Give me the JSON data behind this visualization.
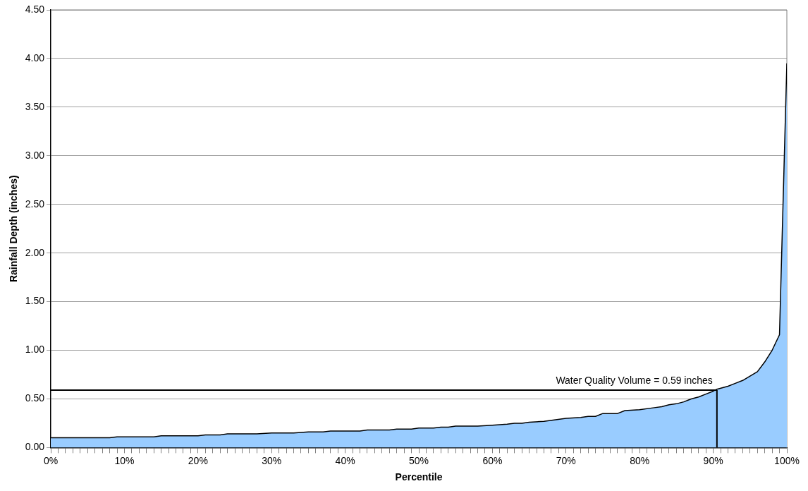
{
  "chart_data": {
    "type": "area",
    "xlabel": "Percentile",
    "ylabel": "Rainfall Depth (inches)",
    "x": [
      0,
      2,
      4,
      6,
      8,
      9,
      12,
      14,
      15,
      18,
      20,
      21,
      22,
      23,
      24,
      28,
      30,
      33,
      35,
      37,
      38,
      42,
      43,
      46,
      47,
      49,
      50,
      52,
      53,
      54,
      55,
      58,
      60,
      62,
      63,
      64,
      65,
      67,
      70,
      72,
      73,
      74,
      75,
      77,
      78,
      80,
      82,
      83,
      84,
      85,
      86,
      87,
      88,
      89,
      90,
      90.5,
      92,
      93,
      94,
      96,
      97,
      98,
      99,
      100
    ],
    "series": [
      {
        "color": "#99ccff",
        "values": [
          0.1,
          0.1,
          0.1,
          0.1,
          0.1,
          0.11,
          0.11,
          0.11,
          0.12,
          0.12,
          0.12,
          0.13,
          0.13,
          0.13,
          0.14,
          0.14,
          0.15,
          0.15,
          0.16,
          0.16,
          0.17,
          0.17,
          0.18,
          0.18,
          0.19,
          0.19,
          0.2,
          0.2,
          0.21,
          0.21,
          0.22,
          0.22,
          0.23,
          0.24,
          0.25,
          0.25,
          0.26,
          0.27,
          0.3,
          0.31,
          0.32,
          0.32,
          0.35,
          0.35,
          0.38,
          0.39,
          0.41,
          0.42,
          0.44,
          0.45,
          0.47,
          0.5,
          0.52,
          0.55,
          0.58,
          0.6,
          0.63,
          0.66,
          0.69,
          0.78,
          0.88,
          1.0,
          1.16,
          3.95
        ]
      }
    ],
    "xlim": [
      0,
      100
    ],
    "xticks": [
      {
        "value": 0,
        "label": "0%"
      },
      {
        "value": 1,
        "label": null
      },
      {
        "value": 2,
        "label": null
      },
      {
        "value": 3,
        "label": null
      },
      {
        "value": 4,
        "label": null
      },
      {
        "value": 5,
        "label": null
      },
      {
        "value": 6,
        "label": null
      },
      {
        "value": 7,
        "label": null
      },
      {
        "value": 8,
        "label": null
      },
      {
        "value": 9,
        "label": null
      },
      {
        "value": 10,
        "label": "10%"
      },
      {
        "value": 11,
        "label": null
      },
      {
        "value": 12,
        "label": null
      },
      {
        "value": 13,
        "label": null
      },
      {
        "value": 14,
        "label": null
      },
      {
        "value": 15,
        "label": null
      },
      {
        "value": 16,
        "label": null
      },
      {
        "value": 17,
        "label": null
      },
      {
        "value": 18,
        "label": null
      },
      {
        "value": 19,
        "label": null
      },
      {
        "value": 20,
        "label": "20%"
      },
      {
        "value": 21,
        "label": null
      },
      {
        "value": 22,
        "label": null
      },
      {
        "value": 23,
        "label": null
      },
      {
        "value": 24,
        "label": null
      },
      {
        "value": 25,
        "label": null
      },
      {
        "value": 26,
        "label": null
      },
      {
        "value": 27,
        "label": null
      },
      {
        "value": 28,
        "label": null
      },
      {
        "value": 29,
        "label": null
      },
      {
        "value": 30,
        "label": "30%"
      },
      {
        "value": 31,
        "label": null
      },
      {
        "value": 32,
        "label": null
      },
      {
        "value": 33,
        "label": null
      },
      {
        "value": 34,
        "label": null
      },
      {
        "value": 35,
        "label": null
      },
      {
        "value": 36,
        "label": null
      },
      {
        "value": 37,
        "label": null
      },
      {
        "value": 38,
        "label": null
      },
      {
        "value": 39,
        "label": null
      },
      {
        "value": 40,
        "label": "40%"
      },
      {
        "value": 41,
        "label": null
      },
      {
        "value": 42,
        "label": null
      },
      {
        "value": 43,
        "label": null
      },
      {
        "value": 44,
        "label": null
      },
      {
        "value": 45,
        "label": null
      },
      {
        "value": 46,
        "label": null
      },
      {
        "value": 47,
        "label": null
      },
      {
        "value": 48,
        "label": null
      },
      {
        "value": 49,
        "label": null
      },
      {
        "value": 50,
        "label": "50%"
      },
      {
        "value": 51,
        "label": null
      },
      {
        "value": 52,
        "label": null
      },
      {
        "value": 53,
        "label": null
      },
      {
        "value": 54,
        "label": null
      },
      {
        "value": 55,
        "label": null
      },
      {
        "value": 56,
        "label": null
      },
      {
        "value": 57,
        "label": null
      },
      {
        "value": 58,
        "label": null
      },
      {
        "value": 59,
        "label": null
      },
      {
        "value": 60,
        "label": "60%"
      },
      {
        "value": 61,
        "label": null
      },
      {
        "value": 62,
        "label": null
      },
      {
        "value": 63,
        "label": null
      },
      {
        "value": 64,
        "label": null
      },
      {
        "value": 65,
        "label": null
      },
      {
        "value": 66,
        "label": null
      },
      {
        "value": 67,
        "label": null
      },
      {
        "value": 68,
        "label": null
      },
      {
        "value": 69,
        "label": null
      },
      {
        "value": 70,
        "label": "70%"
      },
      {
        "value": 71,
        "label": null
      },
      {
        "value": 72,
        "label": null
      },
      {
        "value": 73,
        "label": null
      },
      {
        "value": 74,
        "label": null
      },
      {
        "value": 75,
        "label": null
      },
      {
        "value": 76,
        "label": null
      },
      {
        "value": 77,
        "label": null
      },
      {
        "value": 78,
        "label": null
      },
      {
        "value": 79,
        "label": null
      },
      {
        "value": 80,
        "label": "80%"
      },
      {
        "value": 81,
        "label": null
      },
      {
        "value": 82,
        "label": null
      },
      {
        "value": 83,
        "label": null
      },
      {
        "value": 84,
        "label": null
      },
      {
        "value": 85,
        "label": null
      },
      {
        "value": 86,
        "label": null
      },
      {
        "value": 87,
        "label": null
      },
      {
        "value": 88,
        "label": null
      },
      {
        "value": 89,
        "label": null
      },
      {
        "value": 90,
        "label": "90%"
      },
      {
        "value": 91,
        "label": null
      },
      {
        "value": 92,
        "label": null
      },
      {
        "value": 93,
        "label": null
      },
      {
        "value": 94,
        "label": null
      },
      {
        "value": 95,
        "label": null
      },
      {
        "value": 96,
        "label": null
      },
      {
        "value": 97,
        "label": null
      },
      {
        "value": 98,
        "label": null
      },
      {
        "value": 99,
        "label": null
      },
      {
        "value": 100,
        "label": "100%"
      }
    ],
    "ylim": [
      0,
      4.5
    ],
    "yticks": [
      {
        "value": 0,
        "label": "0.00"
      },
      {
        "value": 0.5,
        "label": "0.50"
      },
      {
        "value": 1,
        "label": "1.00"
      },
      {
        "value": 1.5,
        "label": "1.50"
      },
      {
        "value": 2,
        "label": "2.00"
      },
      {
        "value": 2.5,
        "label": "2.50"
      },
      {
        "value": 3,
        "label": "3.00"
      },
      {
        "value": 3.5,
        "label": "3.50"
      },
      {
        "value": 4,
        "label": "4.00"
      },
      {
        "value": 4.5,
        "label": "4.50"
      }
    ],
    "grid": "y",
    "ref_lines": [
      {
        "axis": "y",
        "value": 0.59,
        "label": "Water Quality Volume = 0.59 inches",
        "color": "#000000"
      },
      {
        "axis": "x",
        "value": 90.5,
        "color": "#000000"
      }
    ]
  }
}
